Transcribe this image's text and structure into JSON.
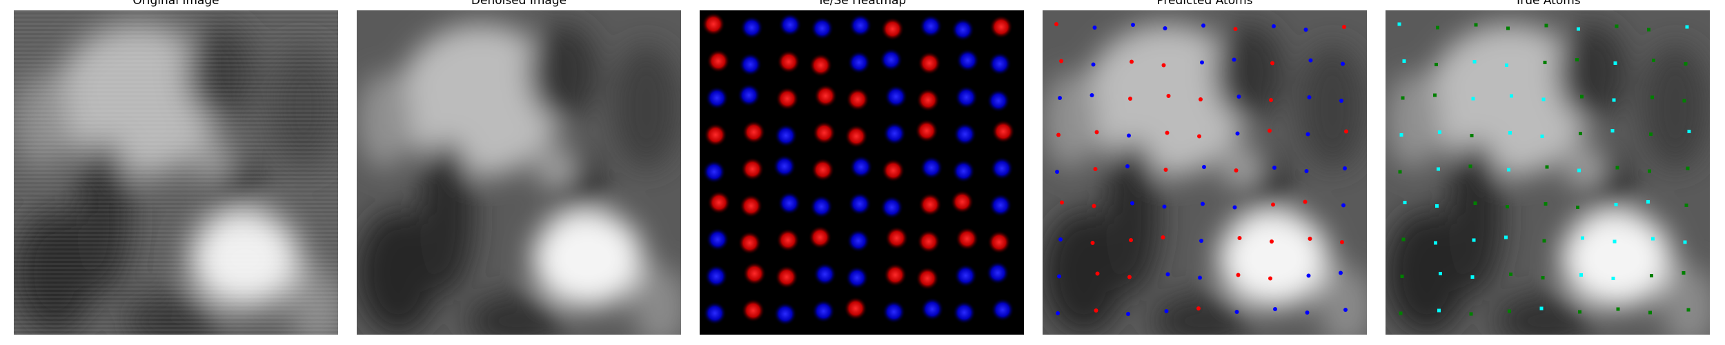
{
  "panels": [
    {
      "id": "original",
      "title": "Original Image"
    },
    {
      "id": "denoised",
      "title": "Denoised Image"
    },
    {
      "id": "heatmap",
      "title": "Te/Se Heatmap"
    },
    {
      "id": "predicted",
      "title": "Predicted Atoms"
    },
    {
      "id": "true",
      "title": "True Atoms"
    }
  ],
  "colors": {
    "te": "#ff0000",
    "se": "#0000ff",
    "true_te": "#00ffff",
    "true_se": "#008000",
    "heatmap_bg": "#000000"
  },
  "heatmap_grid": [
    [
      "te",
      "se",
      "se",
      "se",
      "se",
      "te",
      "se",
      "se",
      "te"
    ],
    [
      "te",
      "se",
      "te",
      "te",
      "se",
      "se",
      "te",
      "se",
      "se"
    ],
    [
      "se",
      "se",
      "te",
      "te",
      "te",
      "se",
      "te",
      "se",
      "se"
    ],
    [
      "te",
      "te",
      "se",
      "te",
      "te",
      "se",
      "te",
      "se",
      "te"
    ],
    [
      "se",
      "te",
      "se",
      "te",
      "se",
      "te",
      "se",
      "se",
      "se"
    ],
    [
      "te",
      "te",
      "se",
      "se",
      "se",
      "se",
      "te",
      "te",
      "se"
    ],
    [
      "se",
      "te",
      "te",
      "te",
      "se",
      "te",
      "te",
      "te",
      "te"
    ],
    [
      "se",
      "te",
      "te",
      "se",
      "se",
      "te",
      "te",
      "se",
      "se"
    ],
    [
      "se",
      "te",
      "se",
      "se",
      "te",
      "se",
      "se",
      "se",
      "se"
    ]
  ]
}
